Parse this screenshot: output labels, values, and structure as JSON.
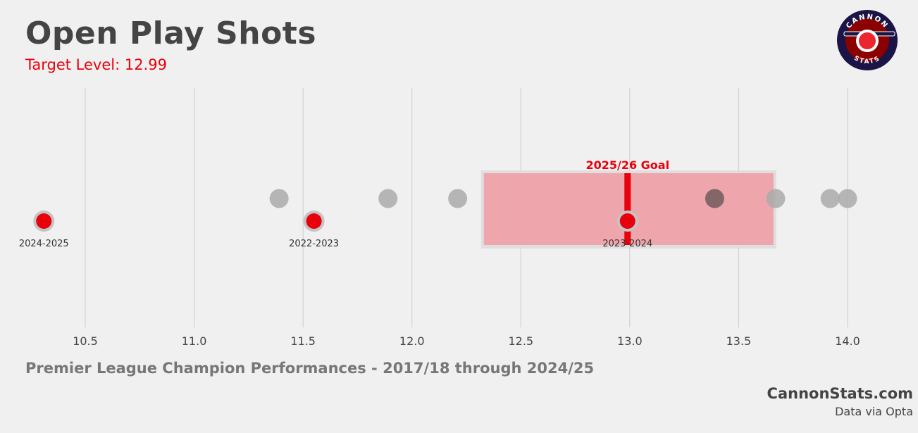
{
  "header": {
    "title": "Open Play Shots",
    "subtitle": "Target Level: 12.99"
  },
  "footer": {
    "caption": "Premier League Champion Performances - 2017/18 through 2024/25",
    "brand": "CannonStats.com",
    "source": "Data via Opta"
  },
  "logo": {
    "top_text": "CANNON",
    "bottom_text": "STATS",
    "colors": {
      "ring": "#1b1446",
      "inner": "#8b0000",
      "accent": "#e8000b"
    }
  },
  "colors": {
    "highlight": "#e8000b",
    "grey_point": "#aaaaaa",
    "grid": "#cccccc",
    "goal_band": "#f0a0a6",
    "tick_text": "#444444"
  },
  "chart_data": {
    "type": "scatter",
    "xlim": [
      10.35,
      14.2
    ],
    "xticks": [
      "10.5",
      "11.0",
      "11.5",
      "12.0",
      "12.5",
      "13.0",
      "13.5",
      "14.0"
    ],
    "xtick_values": [
      10.5,
      11.0,
      11.5,
      12.0,
      12.5,
      13.0,
      13.5,
      14.0
    ],
    "grid": "vertical",
    "other_teams_row": [
      11.39,
      11.89,
      12.21,
      13.39,
      13.67,
      13.92,
      14.0
    ],
    "highlighted_row": [
      {
        "label": "2024-2025",
        "value": 10.31
      },
      {
        "label": "2022-2023",
        "value": 11.55
      },
      {
        "label": "2023-2024",
        "value": 12.99
      }
    ],
    "goal": {
      "label": "2025/26 Goal",
      "value": 12.99,
      "range": [
        12.33,
        13.66
      ]
    }
  }
}
